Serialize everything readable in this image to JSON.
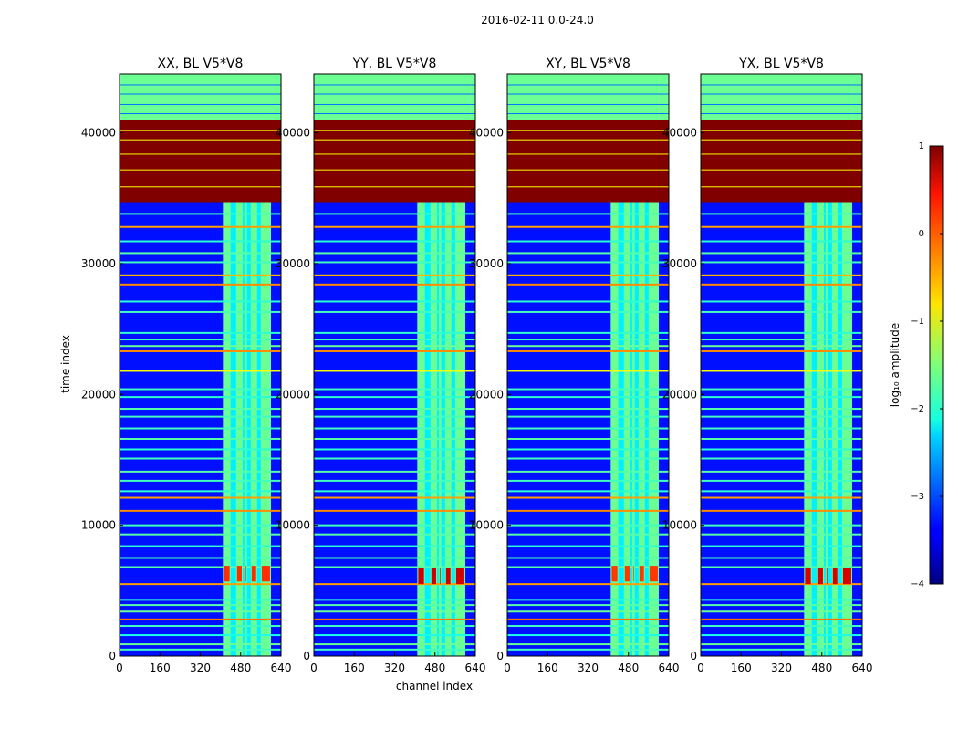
{
  "figure": {
    "suptitle": "2016-02-11 0.0-24.0"
  },
  "chart_data": {
    "type": "heatmap",
    "xlabel": "channel index",
    "ylabel": "time index",
    "xlim": [
      0,
      640
    ],
    "ylim": [
      0,
      44500
    ],
    "x_ticks": [
      0,
      160,
      320,
      480,
      640
    ],
    "y_ticks": [
      0,
      10000,
      20000,
      30000,
      40000
    ],
    "panels": [
      {
        "title": "XX, BL V5*V8",
        "burst_time": 6200,
        "burst_level": 0.15
      },
      {
        "title": "YY, BL V5*V8",
        "burst_time": 6000,
        "burst_level": 0.6
      },
      {
        "title": "XY, BL V5*V8",
        "burst_time": 6200,
        "burst_level": 0.1
      },
      {
        "title": "YX, BL V5*V8",
        "burst_time": 6000,
        "burst_level": 0.55
      }
    ],
    "background_log_amplitude": -3.3,
    "flagged_time_range": [
      34700,
      41000
    ],
    "flagged_log_amplitude": 1,
    "rfi_channel_range": [
      410,
      600
    ],
    "rfi_columns": [
      {
        "start": 410,
        "end": 440
      },
      {
        "start": 462,
        "end": 488
      },
      {
        "start": 495,
        "end": 505
      },
      {
        "start": 520,
        "end": 545
      },
      {
        "start": 560,
        "end": 600
      }
    ],
    "rfi_log_amplitude": -1.6,
    "high_time_range": [
      41000,
      44500
    ],
    "high_log_amplitude": -1.6,
    "horizontal_lines": [
      {
        "t": 500,
        "level": -1.8
      },
      {
        "t": 900,
        "level": -1.6
      },
      {
        "t": 1600,
        "level": -2.0
      },
      {
        "t": 2300,
        "level": -1.8
      },
      {
        "t": 2800,
        "level": -0.2
      },
      {
        "t": 3400,
        "level": -1.6
      },
      {
        "t": 3900,
        "level": -1.7
      },
      {
        "t": 4300,
        "level": -1.9
      },
      {
        "t": 5500,
        "level": -0.4
      },
      {
        "t": 6800,
        "level": -1.7
      },
      {
        "t": 7500,
        "level": -1.8
      },
      {
        "t": 8400,
        "level": -1.9
      },
      {
        "t": 9300,
        "level": -1.7
      },
      {
        "t": 10000,
        "level": -1.8
      },
      {
        "t": 11100,
        "level": -0.3
      },
      {
        "t": 12100,
        "level": -0.4
      },
      {
        "t": 12600,
        "level": -1.9
      },
      {
        "t": 13400,
        "level": -1.8
      },
      {
        "t": 14100,
        "level": -1.7
      },
      {
        "t": 15100,
        "level": -1.8
      },
      {
        "t": 15800,
        "level": -1.9
      },
      {
        "t": 16600,
        "level": -1.7
      },
      {
        "t": 17400,
        "level": -1.8
      },
      {
        "t": 18300,
        "level": -1.8
      },
      {
        "t": 18900,
        "level": -1.7
      },
      {
        "t": 19800,
        "level": -1.9
      },
      {
        "t": 20400,
        "level": -1.8
      },
      {
        "t": 21800,
        "level": -0.9
      },
      {
        "t": 23300,
        "level": -0.3
      },
      {
        "t": 23700,
        "level": -1.6
      },
      {
        "t": 24200,
        "level": -1.8
      },
      {
        "t": 24700,
        "level": -1.9
      },
      {
        "t": 26300,
        "level": -1.8
      },
      {
        "t": 27100,
        "level": -1.9
      },
      {
        "t": 28400,
        "level": -0.3
      },
      {
        "t": 29100,
        "level": -0.5
      },
      {
        "t": 30100,
        "level": -1.8
      },
      {
        "t": 30800,
        "level": -1.7
      },
      {
        "t": 31700,
        "level": -1.9
      },
      {
        "t": 32800,
        "level": -0.4
      },
      {
        "t": 33800,
        "level": -1.8
      }
    ],
    "colorbar": {
      "label": "log₁₀ amplitude",
      "min": -4,
      "max": 1,
      "ticks": [
        1,
        0,
        -1,
        -2,
        -3,
        -4
      ],
      "colormap": "jet"
    }
  }
}
